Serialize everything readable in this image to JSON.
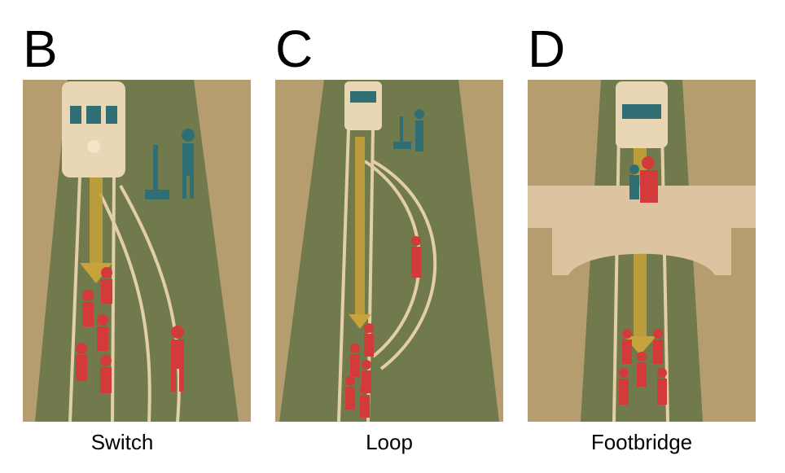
{
  "panels": [
    {
      "letter": "B",
      "caption": "Switch"
    },
    {
      "letter": "C",
      "caption": "Loop"
    },
    {
      "letter": "D",
      "caption": "Footbridge"
    }
  ],
  "colors": {
    "ground_light": "#b59d70",
    "ground_dark": "#707a4c",
    "rail": "#e2cfa6",
    "arrow": "#c8a23a",
    "tram_body": "#e9d6b4",
    "tram_window": "#2f6f73",
    "person_red": "#d33a3a",
    "bystander_teal": "#2f6f73",
    "bridge": "#dcc4a0"
  }
}
